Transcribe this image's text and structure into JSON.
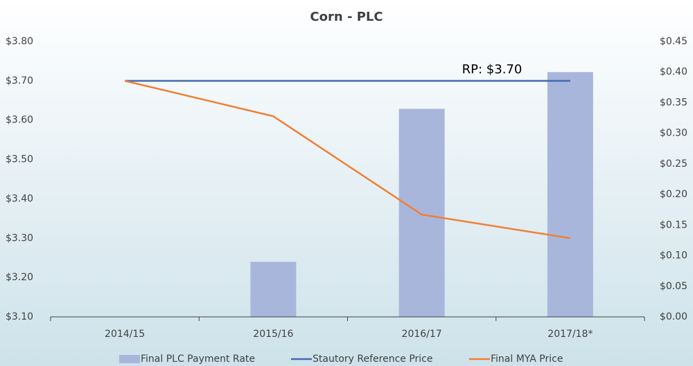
{
  "chart_data": {
    "type": "bar-line",
    "title": "Corn - PLC",
    "categories": [
      "2014/15",
      "2015/16",
      "2016/17",
      "2017/18*"
    ],
    "series": [
      {
        "name": "Final PLC Payment Rate",
        "type": "bar",
        "axis": "y2",
        "color": "#a9b6dc",
        "values": [
          0,
          0.09,
          0.34,
          0.4
        ]
      },
      {
        "name": "Stautory Reference Price",
        "type": "line",
        "color": "#4169b0",
        "values": [
          3.7,
          3.7,
          3.7,
          3.7
        ]
      },
      {
        "name": "Final MYA Price",
        "type": "line",
        "color": "#f07f35",
        "values": [
          3.7,
          3.61,
          3.36,
          3.3
        ]
      }
    ],
    "annotation": "RP: $3.70",
    "ylim": [
      3.1,
      3.8
    ],
    "yticks": [
      {
        "value": 3.1,
        "label": "$3.10"
      },
      {
        "value": 3.2,
        "label": "$3.20"
      },
      {
        "value": 3.3,
        "label": "$3.30"
      },
      {
        "value": 3.4,
        "label": "$3.40"
      },
      {
        "value": 3.5,
        "label": "$3.50"
      },
      {
        "value": 3.6,
        "label": "$3.60"
      },
      {
        "value": 3.7,
        "label": "$3.70"
      },
      {
        "value": 3.8,
        "label": "$3.80"
      }
    ],
    "y2lim": [
      0,
      0.45
    ],
    "y2ticks": [
      {
        "value": 0,
        "label": "$0.00"
      },
      {
        "value": 0.05,
        "label": "$0.05"
      },
      {
        "value": 0.1,
        "label": "$0.10"
      },
      {
        "value": 0.15,
        "label": "$0.15"
      },
      {
        "value": 0.2,
        "label": "$0.20"
      },
      {
        "value": 0.25,
        "label": "$0.25"
      },
      {
        "value": 0.3,
        "label": "$0.30"
      },
      {
        "value": 0.35,
        "label": "$0.35"
      },
      {
        "value": 0.4,
        "label": "$0.40"
      },
      {
        "value": 0.45,
        "label": "$0.45"
      }
    ],
    "legend": "bottom"
  }
}
